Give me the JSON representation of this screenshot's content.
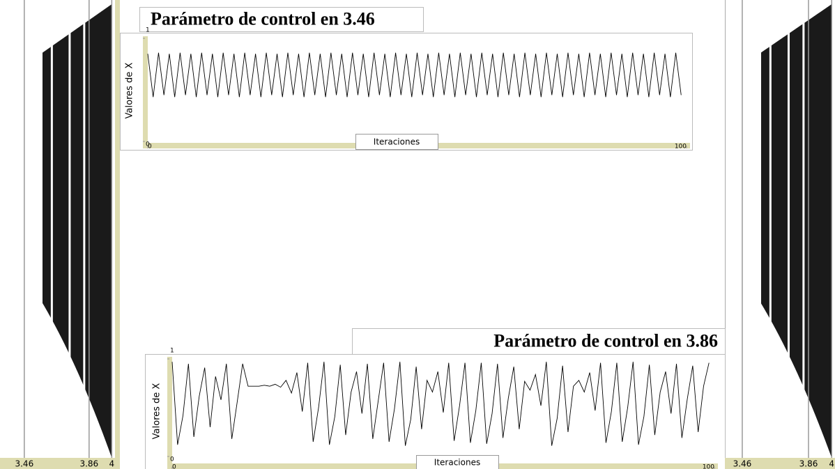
{
  "chart_data": [
    {
      "type": "bifurcation",
      "xlim": [
        3.31,
        4.02
      ],
      "xticks": [
        3.46,
        3.86,
        4
      ]
    },
    {
      "type": "line",
      "title": "Parámetro de control en 3.46",
      "x_label": "Iteraciones",
      "y_label": "Valores de X",
      "xlim": [
        0,
        100
      ],
      "xticks": [
        0,
        100
      ],
      "ylim": [
        0,
        1
      ],
      "yticks": [
        0,
        1
      ],
      "color": "#000000",
      "values": [
        0.85,
        0.43,
        0.86,
        0.45,
        0.85,
        0.43,
        0.86,
        0.45,
        0.85,
        0.43,
        0.86,
        0.45,
        0.85,
        0.43,
        0.86,
        0.45,
        0.85,
        0.43,
        0.86,
        0.45,
        0.85,
        0.43,
        0.86,
        0.45,
        0.85,
        0.43,
        0.86,
        0.45,
        0.85,
        0.43,
        0.86,
        0.45,
        0.85,
        0.43,
        0.86,
        0.45,
        0.85,
        0.43,
        0.86,
        0.45,
        0.85,
        0.43,
        0.86,
        0.45,
        0.85,
        0.43,
        0.86,
        0.45,
        0.85,
        0.43,
        0.86,
        0.45,
        0.85,
        0.43,
        0.86,
        0.45,
        0.85,
        0.43,
        0.86,
        0.45,
        0.85,
        0.43,
        0.86,
        0.45,
        0.85,
        0.43,
        0.86,
        0.45,
        0.85,
        0.43,
        0.86,
        0.45,
        0.85,
        0.43,
        0.86,
        0.45,
        0.85,
        0.43,
        0.86,
        0.45,
        0.85,
        0.43,
        0.86,
        0.45,
        0.85,
        0.43,
        0.86,
        0.45,
        0.85,
        0.43,
        0.86,
        0.45,
        0.85,
        0.43,
        0.86,
        0.45,
        0.85,
        0.43,
        0.86,
        0.45
      ]
    },
    {
      "type": "line",
      "title": "Parámetro de control en 3.86",
      "x_label": "Iteraciones",
      "y_label": "Valores de X",
      "xlim": [
        0,
        100
      ],
      "xticks": [
        0,
        100
      ],
      "ylim": [
        0,
        1
      ],
      "yticks": [
        0,
        1
      ],
      "color": "#000000",
      "values": [
        0.97,
        0.12,
        0.42,
        0.95,
        0.2,
        0.62,
        0.91,
        0.3,
        0.82,
        0.58,
        0.95,
        0.18,
        0.56,
        0.95,
        0.72,
        0.72,
        0.72,
        0.73,
        0.72,
        0.74,
        0.71,
        0.78,
        0.65,
        0.86,
        0.46,
        0.96,
        0.15,
        0.5,
        0.97,
        0.12,
        0.41,
        0.94,
        0.22,
        0.66,
        0.87,
        0.44,
        0.95,
        0.18,
        0.57,
        0.96,
        0.15,
        0.49,
        0.97,
        0.11,
        0.38,
        0.92,
        0.28,
        0.78,
        0.66,
        0.87,
        0.45,
        0.96,
        0.16,
        0.52,
        0.96,
        0.14,
        0.47,
        0.96,
        0.13,
        0.44,
        0.95,
        0.19,
        0.6,
        0.92,
        0.28,
        0.77,
        0.68,
        0.84,
        0.52,
        0.97,
        0.11,
        0.39,
        0.93,
        0.25,
        0.72,
        0.78,
        0.66,
        0.86,
        0.47,
        0.96,
        0.14,
        0.46,
        0.96,
        0.15,
        0.5,
        0.97,
        0.12,
        0.41,
        0.94,
        0.22,
        0.66,
        0.87,
        0.44,
        0.95,
        0.19,
        0.59,
        0.93,
        0.25,
        0.72,
        0.96
      ]
    },
    {
      "type": "bifurcation",
      "xlim": [
        3.355,
        4.02
      ],
      "xticks": [
        3.46,
        3.86,
        4
      ]
    }
  ]
}
